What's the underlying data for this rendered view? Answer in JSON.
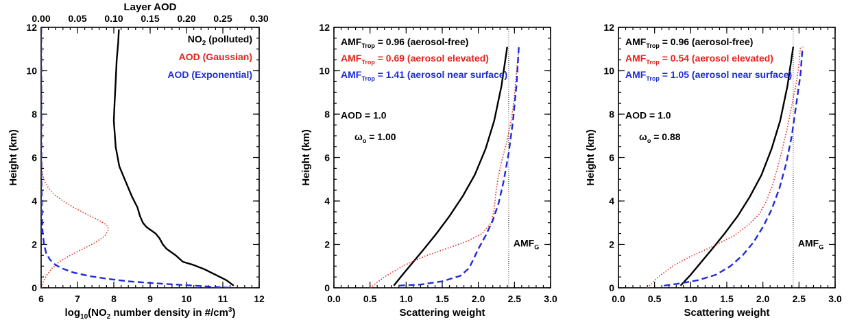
{
  "colors": {
    "black": "#000000",
    "red": "#e8221c",
    "blue": "#1f2bd6"
  },
  "chart_data": [
    {
      "type": "line",
      "xlabel_main": "log",
      "xlabel_sub": "10",
      "xlabel_rest": "(NO",
      "xlabel_sub2": "2",
      "xlabel_tail": " number density in #/cm",
      "xlabel_sup": "3",
      "xlabel_close": ")",
      "x2label": "Layer AOD",
      "ylabel": "Height (km)",
      "xlim": [
        6,
        12
      ],
      "x2lim": [
        0.0,
        0.3
      ],
      "ylim": [
        0,
        12
      ],
      "xticks": [
        "6",
        "7",
        "8",
        "9",
        "10",
        "11",
        "12"
      ],
      "x2ticks": [
        "0.00",
        "0.05",
        "0.10",
        "0.15",
        "0.20",
        "0.25",
        "0.30"
      ],
      "yticks": [
        "0",
        "2",
        "4",
        "6",
        "8",
        "10",
        "12"
      ],
      "legend": [
        {
          "main": "NO",
          "sub": "2",
          "rest": " (polluted)",
          "color": "#000000"
        },
        {
          "main": "AOD (Gaussian)",
          "sub": "",
          "rest": "",
          "color": "#e8221c"
        },
        {
          "main": "AOD (Exponential)",
          "sub": "",
          "rest": "",
          "color": "#1f2bd6"
        }
      ],
      "series": [
        {
          "axis": "bottom",
          "style": "solid",
          "color": "#000000",
          "x": [
            11.3,
            11.1,
            10.8,
            10.5,
            10.2,
            9.9,
            9.7,
            9.45,
            9.35,
            9.25,
            9.15,
            8.9,
            8.8,
            8.72,
            8.65,
            8.5,
            8.3,
            8.15,
            8.05,
            8.0,
            8.02,
            8.05,
            8.08,
            8.12,
            8.14
          ],
          "y": [
            0.1,
            0.35,
            0.6,
            0.85,
            1.05,
            1.2,
            1.5,
            1.8,
            2.0,
            2.3,
            2.5,
            2.8,
            3.0,
            3.3,
            3.7,
            4.2,
            5.0,
            5.6,
            6.5,
            7.7,
            8.5,
            9.5,
            10.5,
            11.3,
            11.9
          ]
        },
        {
          "axis": "top",
          "style": "dotted",
          "color": "#e8221c",
          "x": [
            0.001,
            0.003,
            0.008,
            0.015,
            0.025,
            0.04,
            0.058,
            0.075,
            0.088,
            0.093,
            0.09,
            0.08,
            0.062,
            0.045,
            0.03,
            0.018,
            0.01,
            0.005,
            0.002,
            0.001,
            0.0005
          ],
          "y": [
            0.0,
            0.3,
            0.6,
            0.9,
            1.2,
            1.5,
            1.8,
            2.1,
            2.4,
            2.7,
            2.9,
            3.1,
            3.4,
            3.7,
            4.0,
            4.3,
            4.6,
            4.9,
            5.2,
            5.6,
            6.0
          ]
        },
        {
          "axis": "top",
          "style": "dashed",
          "color": "#1f2bd6",
          "x": [
            0.26,
            0.21,
            0.16,
            0.12,
            0.09,
            0.065,
            0.045,
            0.03,
            0.02,
            0.012,
            0.007,
            0.004,
            0.002,
            0.001,
            0.0005,
            0.0002
          ],
          "y": [
            0.0,
            0.1,
            0.2,
            0.3,
            0.42,
            0.55,
            0.7,
            0.88,
            1.05,
            1.3,
            1.6,
            2.0,
            2.6,
            3.5,
            5.0,
            12.0
          ]
        }
      ]
    },
    {
      "type": "line",
      "xlabel": "Scattering weight",
      "ylabel": "Height (km)",
      "xlim": [
        0.0,
        3.0
      ],
      "ylim": [
        0,
        12
      ],
      "xticks": [
        "0.0",
        "0.5",
        "1.0",
        "1.5",
        "2.0",
        "2.5",
        "3.0"
      ],
      "yticks": [
        "0",
        "2",
        "4",
        "6",
        "8",
        "10",
        "12"
      ],
      "legend": [
        {
          "value": " = 0.96 (aerosol-free)",
          "color": "#000000"
        },
        {
          "value": " = 0.69 (aerosol elevated)",
          "color": "#e8221c"
        },
        {
          "value": " = 1.41 (aerosol near surface)",
          "color": "#1f2bd6"
        }
      ],
      "amf_main": "AMF",
      "amf_sub": "Trop",
      "aod_text": "AOD = 1.0",
      "omega_text": "ω",
      "omega_sub": "o",
      "omega_value": " = 1.00",
      "amfg_main": "AMF",
      "amfg_sub": "G",
      "amfg_x": 2.42,
      "series": [
        {
          "style": "solid",
          "color": "#000000",
          "x": [
            0.83,
            0.95,
            1.1,
            1.25,
            1.42,
            1.6,
            1.78,
            1.95,
            2.1,
            2.22,
            2.32,
            2.4
          ],
          "y": [
            0.1,
            0.6,
            1.2,
            1.8,
            2.5,
            3.3,
            4.2,
            5.2,
            6.4,
            7.7,
            9.3,
            11.1
          ]
        },
        {
          "style": "dotted",
          "color": "#e8221c",
          "x": [
            0.5,
            0.7,
            0.95,
            1.25,
            1.55,
            1.85,
            2.05,
            2.18,
            2.22,
            2.24,
            2.27,
            2.32,
            2.4,
            2.46,
            2.5,
            2.53,
            2.56
          ],
          "y": [
            0.0,
            0.5,
            1.0,
            1.45,
            1.8,
            2.15,
            2.5,
            3.0,
            3.6,
            4.3,
            5.0,
            5.8,
            6.8,
            7.8,
            8.8,
            10.0,
            11.1
          ]
        },
        {
          "style": "dashed",
          "color": "#1f2bd6",
          "x": [
            0.9,
            1.2,
            1.5,
            1.75,
            1.87,
            1.93,
            2.0,
            2.1,
            2.2,
            2.28,
            2.35,
            2.42,
            2.48,
            2.53,
            2.56
          ],
          "y": [
            0.1,
            0.15,
            0.3,
            0.55,
            0.9,
            1.3,
            1.8,
            2.4,
            3.1,
            3.9,
            4.9,
            6.2,
            7.7,
            9.4,
            11.1
          ]
        }
      ]
    },
    {
      "type": "line",
      "xlabel": "Scattering weight",
      "ylabel": "Height (km)",
      "xlim": [
        0.0,
        3.0
      ],
      "ylim": [
        0,
        12
      ],
      "xticks": [
        "0.0",
        "0.5",
        "1.0",
        "1.5",
        "2.0",
        "2.5",
        "3.0"
      ],
      "yticks": [
        "0",
        "2",
        "4",
        "6",
        "8",
        "10",
        "12"
      ],
      "legend": [
        {
          "value": " = 0.96 (aerosol-free)",
          "color": "#000000"
        },
        {
          "value": " = 0.54 (aerosol elevated)",
          "color": "#e8221c"
        },
        {
          "value": " = 1.05 (aerosol near surface)",
          "color": "#1f2bd6"
        }
      ],
      "amf_main": "AMF",
      "amf_sub": "Trop",
      "aod_text": "AOD = 1.0",
      "omega_text": "ω",
      "omega_sub": "o",
      "omega_value": " = 0.88",
      "amfg_main": "AMF",
      "amfg_sub": "G",
      "amfg_x": 2.42,
      "series": [
        {
          "style": "solid",
          "color": "#000000",
          "x": [
            0.86,
            1.0,
            1.15,
            1.3,
            1.47,
            1.65,
            1.82,
            1.98,
            2.12,
            2.24,
            2.34,
            2.42
          ],
          "y": [
            0.1,
            0.6,
            1.2,
            1.8,
            2.5,
            3.3,
            4.2,
            5.2,
            6.4,
            7.7,
            9.3,
            11.1
          ]
        },
        {
          "style": "dotted",
          "color": "#e8221c",
          "x": [
            0.4,
            0.55,
            0.75,
            1.0,
            1.3,
            1.6,
            1.8,
            1.95,
            2.05,
            2.13,
            2.2,
            2.27,
            2.34,
            2.4,
            2.46,
            2.5,
            2.52
          ],
          "y": [
            0.0,
            0.5,
            1.0,
            1.45,
            1.9,
            2.4,
            2.9,
            3.4,
            4.0,
            4.7,
            5.5,
            6.4,
            7.4,
            8.4,
            9.4,
            10.3,
            11.1
          ]
        },
        {
          "style": "dashed",
          "color": "#1f2bd6",
          "x": [
            0.63,
            0.85,
            1.1,
            1.35,
            1.55,
            1.72,
            1.87,
            2.0,
            2.12,
            2.23,
            2.32,
            2.4,
            2.46,
            2.52,
            2.55
          ],
          "y": [
            0.1,
            0.2,
            0.35,
            0.6,
            1.0,
            1.5,
            2.1,
            2.8,
            3.6,
            4.6,
            5.7,
            7.0,
            8.4,
            9.8,
            11.1
          ]
        }
      ]
    }
  ]
}
